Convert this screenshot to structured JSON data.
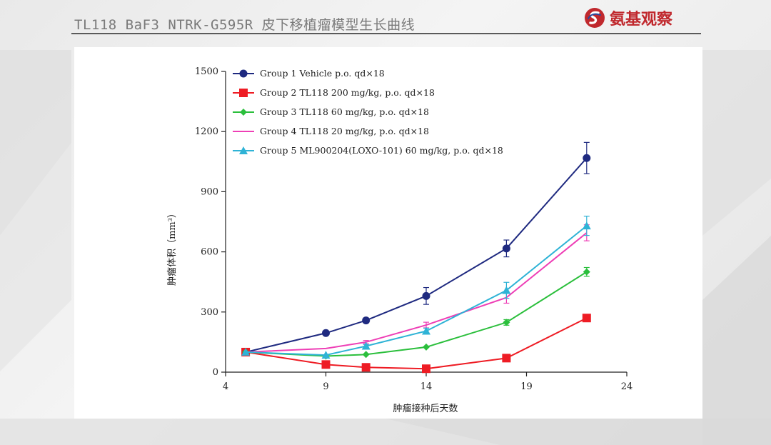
{
  "header": {
    "title": "TL118 BaF3 NTRK-G595R 皮下移植瘤模型生长曲线",
    "brand_name": "氨基观察",
    "brand_logo": "s-swirl-logo-icon"
  },
  "colors": {
    "group1": "#1f2a80",
    "group2": "#ee1c24",
    "group3": "#2bbf3c",
    "group4": "#ee3fb6",
    "group5": "#2fb3d6"
  },
  "chart_data": {
    "type": "line",
    "title": "",
    "xlabel": "肿瘤接种后天数",
    "ylabel": "肿瘤体积（mm³）",
    "xlim": [
      4,
      24
    ],
    "ylim": [
      0,
      1500
    ],
    "xticks": [
      4,
      9,
      14,
      19,
      24
    ],
    "yticks": [
      0,
      300,
      600,
      900,
      1200,
      1500
    ],
    "grid": false,
    "legend_position": "top-left",
    "series": [
      {
        "name": "Group 1 Vehicle p.o. qd×18",
        "marker": "circle",
        "color": "#1f2a80",
        "x": [
          5,
          9,
          11,
          14,
          18,
          22
        ],
        "y": [
          100,
          195,
          258,
          380,
          617,
          1068
        ],
        "err": [
          5,
          10,
          12,
          42,
          42,
          78
        ]
      },
      {
        "name": "Group 2 TL118 200 mg/kg, p.o. qd×18",
        "marker": "square",
        "color": "#ee1c24",
        "x": [
          5,
          9,
          11,
          14,
          18,
          22
        ],
        "y": [
          100,
          38,
          24,
          17,
          70,
          270
        ],
        "err": [
          4,
          4,
          3,
          3,
          5,
          10
        ]
      },
      {
        "name": "Group 3 TL118 60 mg/kg, p.o. qd×18",
        "marker": "diamond",
        "color": "#2bbf3c",
        "x": [
          5,
          9,
          11,
          14,
          18,
          22
        ],
        "y": [
          100,
          80,
          88,
          125,
          248,
          500
        ],
        "err": [
          4,
          4,
          5,
          6,
          14,
          22
        ]
      },
      {
        "name": "Group 4 TL118 20 mg/kg, p.o. qd×18",
        "marker": "none",
        "color": "#ee3fb6",
        "x": [
          5,
          9,
          11,
          14,
          18,
          22
        ],
        "y": [
          100,
          118,
          150,
          235,
          372,
          695
        ],
        "err": [
          4,
          5,
          8,
          14,
          28,
          40
        ]
      },
      {
        "name": "Group 5 ML900204(LOXO-101) 60 mg/kg, p.o. qd×18",
        "marker": "triangle",
        "color": "#2fb3d6",
        "x": [
          5,
          9,
          11,
          14,
          18,
          22
        ],
        "y": [
          100,
          85,
          130,
          205,
          408,
          730
        ],
        "err": [
          4,
          4,
          8,
          14,
          40,
          48
        ]
      }
    ]
  }
}
